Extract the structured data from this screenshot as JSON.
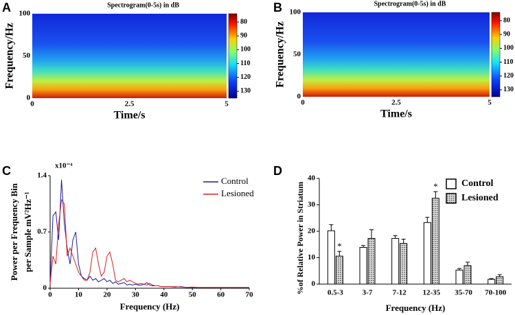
{
  "chart_data": [
    {
      "type": "heatmap",
      "panel": "A",
      "title": "Spectrogram(0-5s) in dB",
      "x_label": "Time/s",
      "y_label": "Frequency/Hz",
      "xlim": [
        0,
        5
      ],
      "xticks": [
        0,
        2.5,
        5
      ],
      "ylim": [
        0,
        100
      ],
      "yticks": [
        0,
        50,
        100
      ],
      "clim": [
        74,
        135
      ],
      "cticks": [
        80,
        90,
        100,
        110,
        120,
        130
      ],
      "colorbar_reversed": true
    },
    {
      "type": "heatmap",
      "panel": "B",
      "title": "Spectrogram(0-5s) in dB",
      "x_label": "Time/s",
      "y_label": "Frequency/Hz",
      "xlim": [
        0,
        5
      ],
      "xticks": [
        0,
        2.5,
        5
      ],
      "ylim": [
        0,
        100
      ],
      "yticks": [
        0,
        50,
        100
      ],
      "clim": [
        74,
        135
      ],
      "cticks": [
        80,
        90,
        100,
        110,
        120,
        130
      ],
      "colorbar_reversed": true
    },
    {
      "type": "line",
      "panel": "C",
      "x_label": "Frequency (Hz)",
      "y_label": [
        "Power per Frequency Bin",
        "per Sample mV²Hz⁻¹"
      ],
      "y_multiplier": "x10⁻⁴",
      "xlim": [
        0,
        70
      ],
      "xticks": [
        0,
        10,
        20,
        30,
        40,
        50,
        60,
        70
      ],
      "ylim": [
        0,
        1.4
      ],
      "yticks": [
        0,
        0.7,
        1.4
      ],
      "x": [
        0,
        1,
        2,
        3,
        4,
        5,
        6,
        7,
        8,
        9,
        10,
        11,
        12,
        13,
        14,
        15,
        16,
        17,
        18,
        19,
        20,
        21,
        22,
        23,
        24,
        25,
        26,
        27,
        28,
        29,
        30,
        31,
        32,
        33,
        34,
        35,
        36,
        37,
        38,
        39,
        40,
        42,
        44,
        46,
        48,
        50,
        52,
        54,
        56,
        58,
        60,
        62,
        64,
        66,
        68,
        70
      ],
      "series": [
        {
          "name": "Control",
          "color": "#1a1aa0",
          "values": [
            0.05,
            0.9,
            0.95,
            0.6,
            1.35,
            0.8,
            0.5,
            0.3,
            0.6,
            0.7,
            0.3,
            0.15,
            0.12,
            0.1,
            0.15,
            0.1,
            0.12,
            0.08,
            0.1,
            0.12,
            0.08,
            0.1,
            0.06,
            0.08,
            0.05,
            0.06,
            0.07,
            0.04,
            0.05,
            0.04,
            0.05,
            0.04,
            0.04,
            0.05,
            0.07,
            0.04,
            0.03,
            0.03,
            0.03,
            0.02,
            0.02,
            0.02,
            0.015,
            0.02,
            0.01,
            0.01,
            0.01,
            0.01,
            0.01,
            0.01,
            0.01,
            0.01,
            0.01,
            0.01,
            0.01,
            0.01
          ]
        },
        {
          "name": "Lesioned",
          "color": "#d42020",
          "values": [
            0.05,
            0.4,
            0.3,
            0.8,
            1.1,
            1.05,
            0.4,
            0.5,
            0.4,
            0.3,
            0.2,
            0.15,
            0.1,
            0.1,
            0.2,
            0.45,
            0.5,
            0.3,
            0.15,
            0.2,
            0.4,
            0.45,
            0.3,
            0.1,
            0.08,
            0.1,
            0.12,
            0.08,
            0.1,
            0.08,
            0.06,
            0.05,
            0.06,
            0.05,
            0.04,
            0.06,
            0.04,
            0.03,
            0.03,
            0.02,
            0.02,
            0.02,
            0.02,
            0.015,
            0.01,
            0.015,
            0.01,
            0.01,
            0.01,
            0.01,
            0.01,
            0.01,
            0.01,
            0.01,
            0.01,
            0.01
          ]
        }
      ]
    },
    {
      "type": "bar",
      "panel": "D",
      "x_label": "Frequency (Hz)",
      "y_label": "%of Relative Power in Striatum",
      "categories": [
        "0.5-3",
        "3-7",
        "7-12",
        "12-35",
        "35-70",
        "70-100"
      ],
      "ylim": [
        0,
        40
      ],
      "yticks": [
        0,
        10,
        20,
        30,
        40
      ],
      "series": [
        {
          "name": "Control",
          "color": "#ffffff",
          "values": [
            20.2,
            13.9,
            17.3,
            23.3,
            5.3,
            1.8
          ],
          "errors": [
            2.3,
            0.7,
            1.0,
            2.0,
            0.6,
            0.3
          ]
        },
        {
          "name": "Lesioned",
          "color": "#bbbbbb",
          "values": [
            10.6,
            17.3,
            15.4,
            32.5,
            7.0,
            2.8
          ],
          "errors": [
            1.8,
            3.3,
            1.6,
            2.5,
            1.3,
            0.8
          ],
          "significance": [
            "*",
            null,
            null,
            "*",
            null,
            null
          ]
        }
      ]
    }
  ]
}
